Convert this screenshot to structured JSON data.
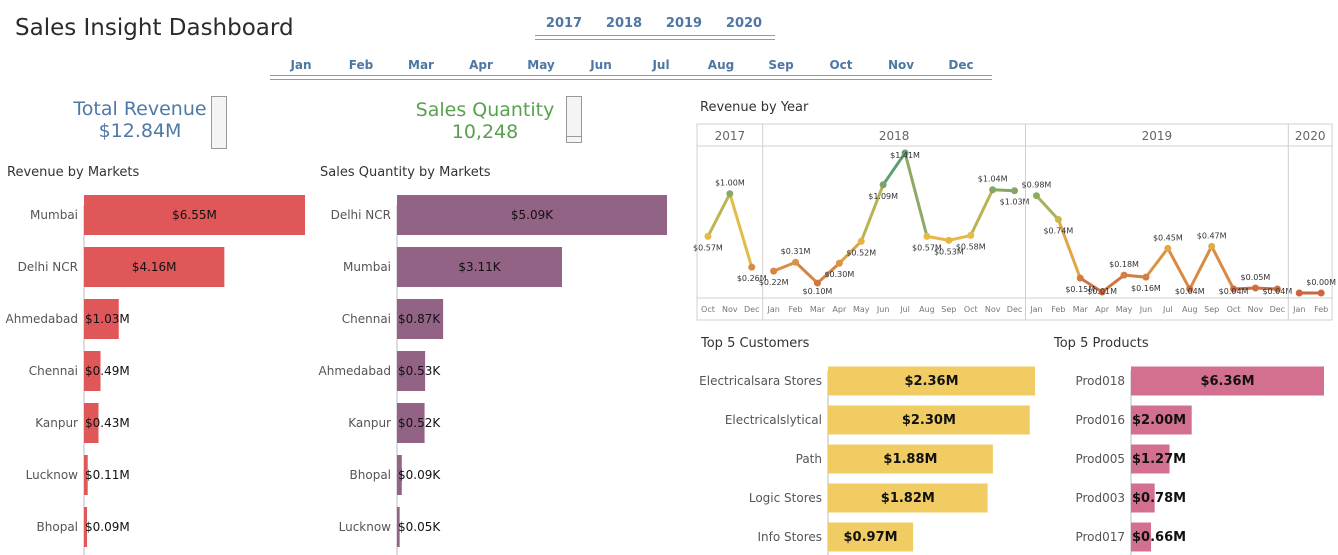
{
  "dashboard": {
    "title": "Sales Insight Dashboard",
    "years": [
      "2017",
      "2018",
      "2019",
      "2020"
    ],
    "months": [
      "Jan",
      "Feb",
      "Mar",
      "Apr",
      "May",
      "Jun",
      "Jul",
      "Aug",
      "Sep",
      "Oct",
      "Nov",
      "Dec"
    ]
  },
  "kpi": {
    "revenue_label": "Total Revenue",
    "revenue_value": "$12.84M",
    "qty_label": "Sales Quantity",
    "qty_value": "10,248"
  },
  "colors": {
    "revenue": "#e05759",
    "quantity": "#936386",
    "customers": "#f0cc63",
    "products": "#d4708f",
    "kpi_revenue": "#4e79a7",
    "kpi_qty": "#59a14f"
  },
  "chart_data": [
    {
      "type": "bar",
      "title": "Revenue by Markets",
      "categories": [
        "Mumbai",
        "Delhi NCR",
        "Ahmedabad",
        "Chennai",
        "Kanpur",
        "Lucknow",
        "Bhopal"
      ],
      "values": [
        6.55,
        4.16,
        1.03,
        0.49,
        0.43,
        0.11,
        0.09
      ],
      "labels": [
        "$6.55M",
        "$4.16M",
        "$1.03M",
        "$0.49M",
        "$0.43M",
        "$0.11M",
        "$0.09M"
      ],
      "orientation": "horizontal"
    },
    {
      "type": "bar",
      "title": "Sales Quantity by Markets",
      "categories": [
        "Delhi NCR",
        "Mumbai",
        "Chennai",
        "Ahmedabad",
        "Kanpur",
        "Bhopal",
        "Lucknow"
      ],
      "values": [
        5.09,
        3.11,
        0.87,
        0.53,
        0.52,
        0.09,
        0.05
      ],
      "labels": [
        "$5.09K",
        "$3.11K",
        "$0.87K",
        "$0.53K",
        "$0.52K",
        "$0.09K",
        "$0.05K"
      ],
      "orientation": "horizontal"
    },
    {
      "type": "line",
      "title": "Revenue by Year",
      "panels": [
        {
          "year": "2017",
          "months": [
            "Oct",
            "Nov",
            "Dec"
          ],
          "values": [
            0.57,
            1.0,
            0.26
          ],
          "labels": [
            "$0.57M",
            "$1.00M",
            "$0.26M"
          ]
        },
        {
          "year": "2018",
          "months": [
            "Jan",
            "Feb",
            "Mar",
            "Apr",
            "May",
            "Jun",
            "Jul",
            "Aug",
            "Sep",
            "Oct",
            "Nov",
            "Dec"
          ],
          "values": [
            0.22,
            0.31,
            0.1,
            0.3,
            0.52,
            1.09,
            1.41,
            0.57,
            0.53,
            0.58,
            1.04,
            1.03
          ],
          "labels": [
            "$0.22M",
            "$0.31M",
            "$0.10M",
            "$0.30M",
            "$0.52M",
            "$1.09M",
            "$1.41M",
            "$0.57M",
            "$0.53M",
            "$0.58M",
            "$1.04M",
            "$1.03M"
          ]
        },
        {
          "year": "2019",
          "months": [
            "Jan",
            "Feb",
            "Mar",
            "Apr",
            "May",
            "Jun",
            "Jul",
            "Aug",
            "Sep",
            "Oct",
            "Nov",
            "Dec"
          ],
          "values": [
            0.98,
            0.74,
            0.15,
            0.01,
            0.18,
            0.16,
            0.45,
            0.04,
            0.47,
            0.04,
            0.05,
            0.04
          ],
          "labels": [
            "$0.98M",
            "$0.74M",
            "$0.15M",
            "$0.01M",
            "$0.18M",
            "$0.16M",
            "$0.45M",
            "$0.04M",
            "$0.47M",
            "$0.04M",
            "$0.05M",
            "$0.04M"
          ]
        },
        {
          "year": "2020",
          "months": [
            "Jan",
            "Feb"
          ],
          "values": [
            0.0,
            0.0
          ],
          "labels": [
            "",
            "$0.00M"
          ]
        }
      ]
    },
    {
      "type": "bar",
      "title": "Top 5 Customers",
      "categories": [
        "Electricalsara Stores",
        "Electricalslytical",
        "Path",
        "Logic Stores",
        "Info Stores"
      ],
      "values": [
        2.36,
        2.3,
        1.88,
        1.82,
        0.97
      ],
      "labels": [
        "$2.36M",
        "$2.30M",
        "$1.88M",
        "$1.82M",
        "$0.97M"
      ],
      "orientation": "horizontal"
    },
    {
      "type": "bar",
      "title": "Top 5 Products",
      "categories": [
        "Prod018",
        "Prod016",
        "Prod005",
        "Prod003",
        "Prod017"
      ],
      "values": [
        6.36,
        2.0,
        1.27,
        0.78,
        0.66
      ],
      "labels": [
        "$6.36M",
        "$2.00M",
        "$1.27M",
        "$0.78M",
        "$0.66M"
      ],
      "orientation": "horizontal"
    }
  ]
}
